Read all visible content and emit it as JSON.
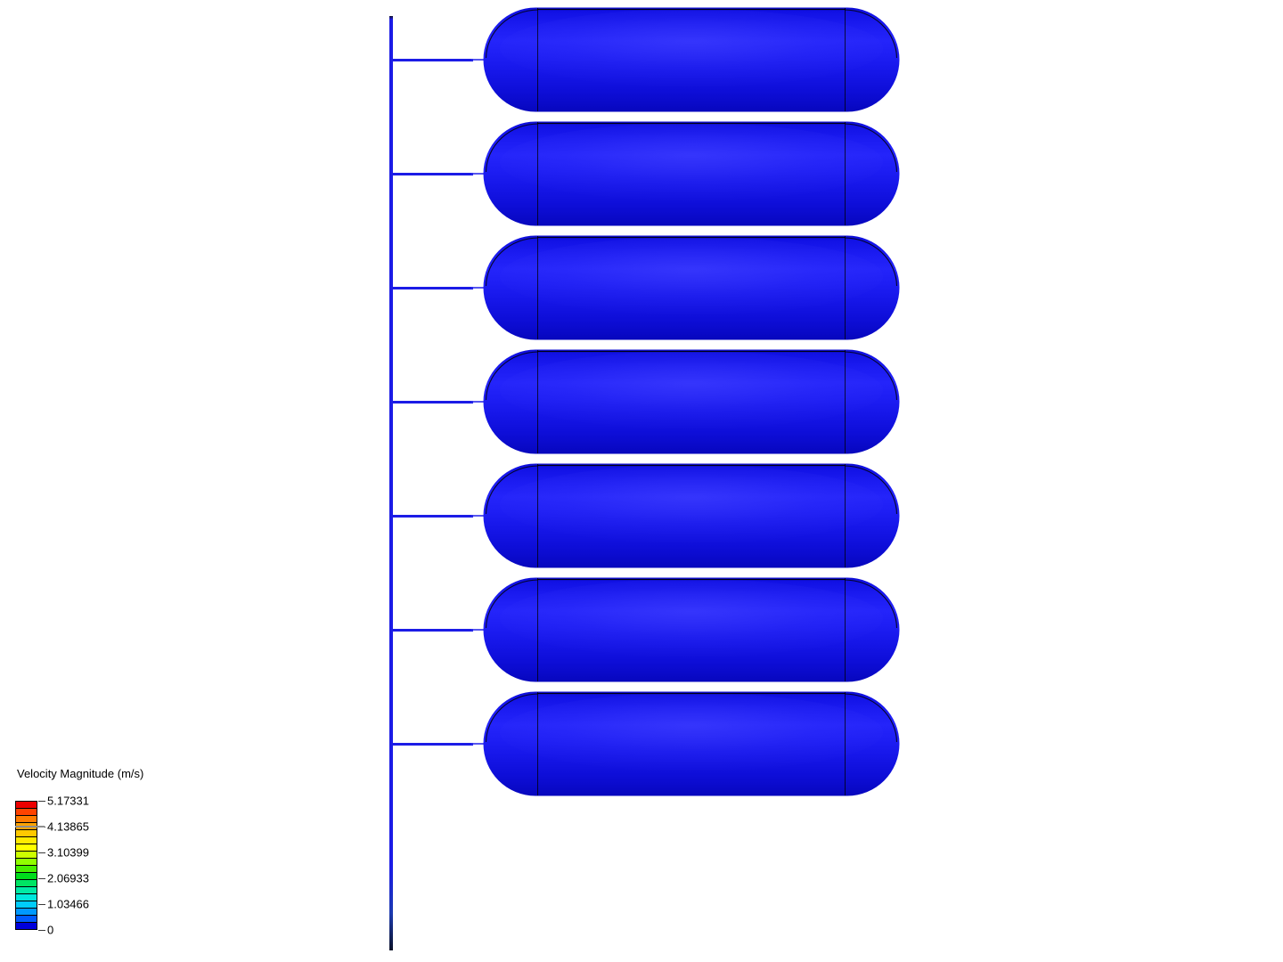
{
  "chart_data": {
    "type": "heatmap",
    "title": "Velocity Magnitude (m/s)",
    "value_range": [
      0,
      5.17331
    ],
    "legend_tick_values": [
      5.17331,
      4.13865,
      3.10399,
      2.06933,
      1.03466,
      0
    ],
    "colormap": "rainbow-blue-to-red",
    "displayed_surface_velocity": 0
  },
  "legend": {
    "title": "Velocity Magnitude (m/s)",
    "tick_labels": [
      "5.17331",
      "4.13865",
      "3.10399",
      "2.06933",
      "1.03466",
      "0"
    ],
    "band_colors_top_to_bottom": [
      "#ec0000",
      "#ff4300",
      "#ff7b00",
      "#ffa300",
      "#ffc900",
      "#ffea00",
      "#ffff00",
      "#ccff00",
      "#91ff00",
      "#46ef00",
      "#00dd1c",
      "#00e563",
      "#00eba5",
      "#00e8dd",
      "#00ccfa",
      "#0099ff",
      "#005aff",
      "#0000dc"
    ],
    "marker": {
      "at_label": "4.13865",
      "color": "#8f8f8f"
    },
    "text_color": "#000000"
  },
  "scene": {
    "tank_count": 7,
    "tank_fill_color": "#1c1cf0",
    "tank_edge_color": "#000000",
    "pipe_color": "#1c1ce6",
    "background_color": "#ffffff"
  }
}
